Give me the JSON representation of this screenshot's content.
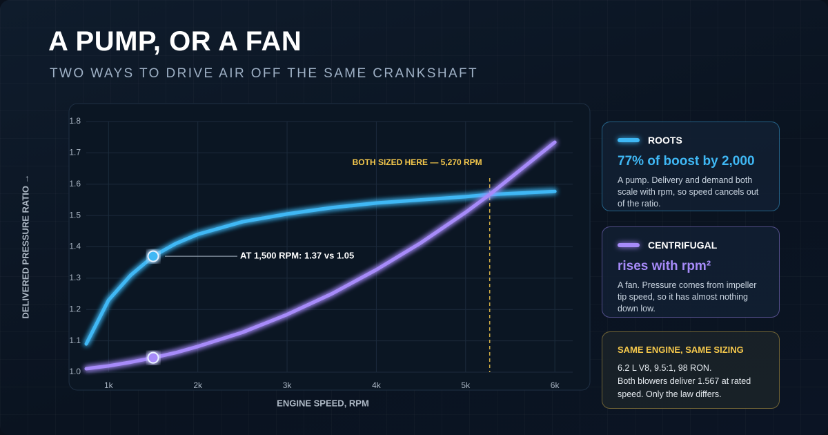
{
  "header": {
    "title": "A PUMP, OR A FAN",
    "subtitle": "TWO WAYS TO DRIVE AIR OFF THE SAME CRANKSHAFT"
  },
  "chart_data": {
    "type": "line",
    "x_label": "ENGINE SPEED, RPM",
    "y_label": "DELIVERED PRESSURE RATIO →",
    "x": [
      750,
      1000,
      1250,
      1500,
      1750,
      2000,
      2500,
      3000,
      3500,
      4000,
      4500,
      5000,
      5270,
      6000
    ],
    "series": [
      {
        "name": "ROOTS",
        "color": "#3fb8f5",
        "values": [
          1.09,
          1.23,
          1.31,
          1.37,
          1.41,
          1.44,
          1.48,
          1.505,
          1.525,
          1.54,
          1.55,
          1.56,
          1.567,
          1.577
        ]
      },
      {
        "name": "CENTRIFUGAL",
        "color": "#a78bfa",
        "values": [
          1.011,
          1.02,
          1.032,
          1.046,
          1.062,
          1.082,
          1.127,
          1.184,
          1.25,
          1.327,
          1.413,
          1.51,
          1.567,
          1.734
        ]
      }
    ],
    "xlim": [
      750,
      6200
    ],
    "ylim": [
      1.0,
      1.8
    ],
    "xticks": [
      {
        "value": 1000,
        "label": "1k"
      },
      {
        "value": 2000,
        "label": "2k"
      },
      {
        "value": 3000,
        "label": "3k"
      },
      {
        "value": 4000,
        "label": "4k"
      },
      {
        "value": 5000,
        "label": "5k"
      },
      {
        "value": 6000,
        "label": "6k"
      }
    ],
    "yticks": [
      {
        "value": 1.0,
        "label": "1.0"
      },
      1.1,
      1.2,
      1.3,
      1.4,
      1.5,
      1.6,
      1.7,
      1.8
    ],
    "grid": true,
    "annotations": [
      {
        "text": "AT 1,500 RPM: 1.37 vs 1.05",
        "x": 1500,
        "y": 1.37
      },
      {
        "text": "BOTH SIZED HERE — 5,270 RPM",
        "x": 5270,
        "color": "#f5c84c"
      }
    ]
  },
  "cards": [
    {
      "headline": "77% of boost by 2,000",
      "body": "A pump. Delivery and demand both scale with rpm, so speed cancels out of the ratio."
    },
    {
      "headline": "rises with rpm²",
      "body": "A fan. Pressure comes from impeller tip speed, so it has almost nothing down low."
    },
    {
      "title": "SAME ENGINE, SAME SIZING",
      "lines": [
        "6.2 L V8, 9.5:1, 98 RON.",
        "Both blowers deliver 1.567 at rated speed. Only the law differs."
      ]
    }
  ]
}
